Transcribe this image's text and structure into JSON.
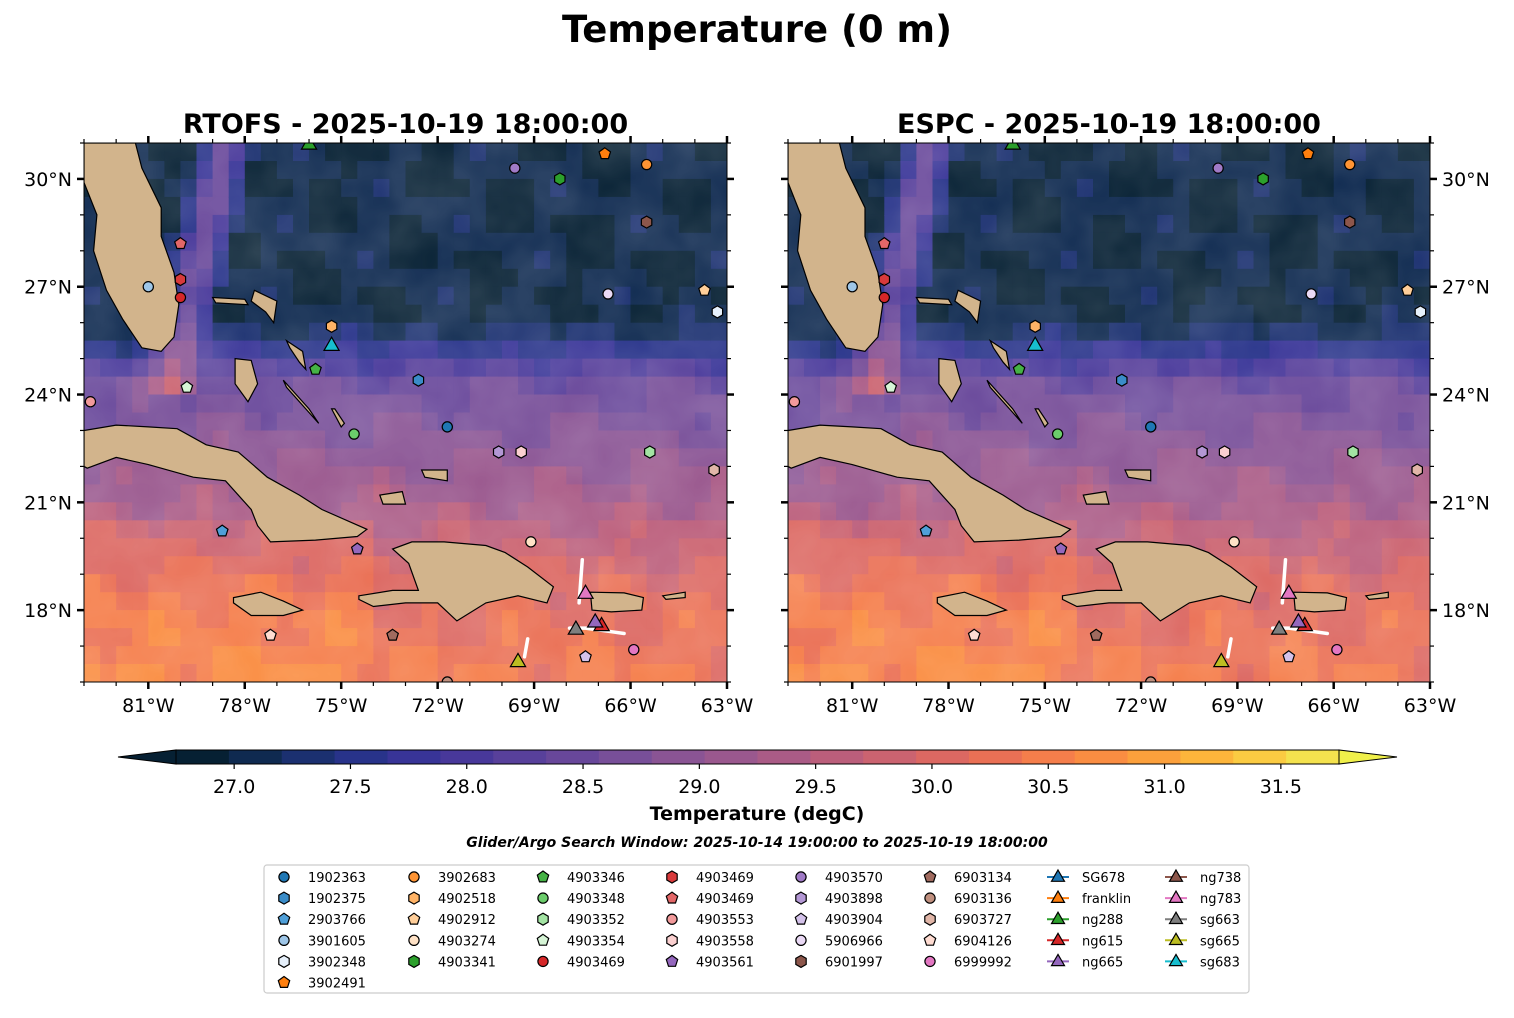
{
  "suptitle": "Temperature (0 m)",
  "search_window": "Glider/Argo Search Window: 2025-10-14 19:00:00 to 2025-10-19 18:00:00",
  "chart_data": [
    {
      "type": "heatmap",
      "title": "RTOFS - 2025-10-19 18:00:00",
      "lon_range": [
        -83,
        -63
      ],
      "lat_range": [
        16,
        31
      ],
      "x_ticks": [
        "81°W",
        "78°W",
        "75°W",
        "72°W",
        "69°W",
        "66°W",
        "63°W"
      ],
      "y_ticks": [
        "30°N",
        "27°N",
        "24°N",
        "21°N",
        "18°N"
      ],
      "field_summary": "Sea surface temperature: ~27 degC north of 25°N, ~28.5 degC around Bahamas, 29.5–30.5 degC in Caribbean"
    },
    {
      "type": "heatmap",
      "title": "ESPC - 2025-10-19 18:00:00",
      "lon_range": [
        -83,
        -63
      ],
      "lat_range": [
        16,
        31
      ],
      "x_ticks": [
        "81°W",
        "78°W",
        "75°W",
        "72°W",
        "69°W",
        "66°W",
        "63°W"
      ],
      "y_ticks": [
        "30°N",
        "27°N",
        "24°N",
        "21°N",
        "18°N"
      ],
      "field_summary": "Sea surface temperature: ~27 degC north of 25°N, ~28.5 degC around Bahamas, 29.5–30.5 degC in Caribbean"
    }
  ],
  "colorbar": {
    "label": "Temperature (degC)",
    "min": 26.75,
    "max": 31.75,
    "ticks": [
      "27.0",
      "27.5",
      "28.0",
      "28.5",
      "29.0",
      "29.5",
      "30.0",
      "30.5",
      "31.0",
      "31.5"
    ],
    "tick_values": [
      27.0,
      27.5,
      28.0,
      28.5,
      29.0,
      29.5,
      30.0,
      30.5,
      31.0,
      31.5
    ],
    "colors": [
      "#062033",
      "#0f2a50",
      "#1b3070",
      "#28338a",
      "#383497",
      "#48389a",
      "#58409b",
      "#68479a",
      "#784f99",
      "#8a5494",
      "#9a588e",
      "#aa5b86",
      "#bb5e7b",
      "#cb6370",
      "#dc6862",
      "#ea7055",
      "#f57e4b",
      "#fa8d42",
      "#fca03c",
      "#fdb53b",
      "#fbcb42",
      "#f4e24e"
    ]
  },
  "observations": [
    {
      "name": "1902363",
      "marker": "circle",
      "color": "#1f77b4",
      "lon": -71.7,
      "lat": 23.1
    },
    {
      "name": "1902375",
      "marker": "hexagon",
      "color": "#3a8cc8",
      "lon": -72.6,
      "lat": 24.4
    },
    {
      "name": "2903766",
      "marker": "pentagon",
      "color": "#4f9fd8",
      "lon": -78.7,
      "lat": 20.2
    },
    {
      "name": "3901605",
      "marker": "circle",
      "color": "#9ec6e8",
      "lon": -81.0,
      "lat": 27.0
    },
    {
      "name": "3902348",
      "marker": "hexagon",
      "color": "#e6f0fb",
      "lon": -63.3,
      "lat": 26.3
    },
    {
      "name": "3902491",
      "marker": "pentagon",
      "color": "#ff7f0e",
      "lon": -66.8,
      "lat": 30.7
    },
    {
      "name": "3902683",
      "marker": "circle",
      "color": "#ff9433",
      "lon": -65.5,
      "lat": 30.4
    },
    {
      "name": "4902518",
      "marker": "hexagon",
      "color": "#ffb366",
      "lon": -75.3,
      "lat": 25.9
    },
    {
      "name": "4902912",
      "marker": "pentagon",
      "color": "#ffce99",
      "lon": -63.7,
      "lat": 26.9
    },
    {
      "name": "4903274",
      "marker": "circle",
      "color": "#ffe2c6",
      "lon": -69.1,
      "lat": 19.9
    },
    {
      "name": "4903341",
      "marker": "hexagon",
      "color": "#2ca02c",
      "lon": -68.2,
      "lat": 30.0
    },
    {
      "name": "4903346",
      "marker": "pentagon",
      "color": "#45b245",
      "lon": -75.8,
      "lat": 24.7
    },
    {
      "name": "4903348",
      "marker": "circle",
      "color": "#6bcc6b",
      "lon": -74.6,
      "lat": 22.9
    },
    {
      "name": "4903352",
      "marker": "hexagon",
      "color": "#a3e3a3",
      "lon": -65.4,
      "lat": 22.4
    },
    {
      "name": "4903354",
      "marker": "pentagon",
      "color": "#d6f5d6",
      "lon": -79.8,
      "lat": 24.2
    },
    {
      "name": "4903469",
      "marker": "circle",
      "color": "#d62728",
      "lon": -80.0,
      "lat": 26.7
    },
    {
      "name": "4903469",
      "marker": "hexagon",
      "color": "#d83a3b",
      "lon": -80.0,
      "lat": 27.2
    },
    {
      "name": "4903469",
      "marker": "pentagon",
      "color": "#e36768",
      "lon": -80.0,
      "lat": 28.2
    },
    {
      "name": "4903553",
      "marker": "circle",
      "color": "#f29a9b",
      "lon": -82.8,
      "lat": 23.8
    },
    {
      "name": "4903558",
      "marker": "hexagon",
      "color": "#fbd0d0",
      "lon": -69.4,
      "lat": 22.4
    },
    {
      "name": "4903561",
      "marker": "pentagon",
      "color": "#9467bd",
      "lon": -74.5,
      "lat": 19.7
    },
    {
      "name": "4903570",
      "marker": "circle",
      "color": "#a07ac6",
      "lon": -69.6,
      "lat": 30.3
    },
    {
      "name": "4903898",
      "marker": "hexagon",
      "color": "#b397d4",
      "lon": -70.1,
      "lat": 22.4
    },
    {
      "name": "4903904",
      "marker": "pentagon",
      "color": "#d4c2ea",
      "lon": -67.4,
      "lat": 16.7
    },
    {
      "name": "5906966",
      "marker": "circle",
      "color": "#ead9f5",
      "lon": -66.7,
      "lat": 26.8
    },
    {
      "name": "6901997",
      "marker": "hexagon",
      "color": "#8c564b",
      "lon": -65.5,
      "lat": 28.8
    },
    {
      "name": "6903134",
      "marker": "pentagon",
      "color": "#a06b5f",
      "lon": -73.4,
      "lat": 17.3
    },
    {
      "name": "6903136",
      "marker": "circle",
      "color": "#c0907f",
      "lon": -71.7,
      "lat": 16.0
    },
    {
      "name": "6903727",
      "marker": "hexagon",
      "color": "#e1b6a8",
      "lon": -63.4,
      "lat": 21.9
    },
    {
      "name": "6904126",
      "marker": "pentagon",
      "color": "#ffdcd2",
      "lon": -77.2,
      "lat": 17.3
    },
    {
      "name": "6999992",
      "marker": "circle",
      "color": "#e377c2",
      "lon": -65.9,
      "lat": 16.9
    },
    {
      "name": "SG678",
      "marker": "triangle",
      "color": "#1f77b4",
      "lon": -999,
      "lat": -999
    },
    {
      "name": "franklin",
      "marker": "triangle",
      "color": "#ff7f0e",
      "lon": -999,
      "lat": -999
    },
    {
      "name": "ng288",
      "marker": "triangle",
      "color": "#2ca02c",
      "lon": -76.0,
      "lat": 31.0
    },
    {
      "name": "ng615",
      "marker": "triangle",
      "color": "#d62728",
      "lon": -66.9,
      "lat": 17.6
    },
    {
      "name": "ng665",
      "marker": "triangle",
      "color": "#9467bd",
      "lon": -67.1,
      "lat": 17.7
    },
    {
      "name": "ng738",
      "marker": "triangle",
      "color": "#8c564b",
      "lon": -999,
      "lat": -999
    },
    {
      "name": "ng783",
      "marker": "triangle",
      "color": "#e377c2",
      "lon": -67.4,
      "lat": 18.5
    },
    {
      "name": "sg663",
      "marker": "triangle",
      "color": "#7f7f7f",
      "lon": -67.7,
      "lat": 17.5
    },
    {
      "name": "sg665",
      "marker": "triangle",
      "color": "#bcbd22",
      "lon": -69.5,
      "lat": 16.6
    },
    {
      "name": "sg683",
      "marker": "triangle",
      "color": "#17becf",
      "lon": -75.3,
      "lat": 25.4
    }
  ],
  "legend_items": [
    {
      "label": "1902363",
      "marker": "circle",
      "color": "#1f77b4"
    },
    {
      "label": "1902375",
      "marker": "hexagon",
      "color": "#3a8cc8"
    },
    {
      "label": "2903766",
      "marker": "pentagon",
      "color": "#4f9fd8"
    },
    {
      "label": "3901605",
      "marker": "circle",
      "color": "#9ec6e8"
    },
    {
      "label": "3902348",
      "marker": "hexagon",
      "color": "#e6f0fb"
    },
    {
      "label": "3902491",
      "marker": "pentagon",
      "color": "#ff7f0e"
    },
    {
      "label": "3902683",
      "marker": "circle",
      "color": "#ff9433"
    },
    {
      "label": "4902518",
      "marker": "hexagon",
      "color": "#ffb366"
    },
    {
      "label": "4902912",
      "marker": "pentagon",
      "color": "#ffce99"
    },
    {
      "label": "4903274",
      "marker": "circle",
      "color": "#ffe2c6"
    },
    {
      "label": "4903341",
      "marker": "hexagon",
      "color": "#2ca02c"
    },
    {
      "label": "4903346",
      "marker": "pentagon",
      "color": "#45b245"
    },
    {
      "label": "4903348",
      "marker": "circle",
      "color": "#6bcc6b"
    },
    {
      "label": "4903352",
      "marker": "hexagon",
      "color": "#a3e3a3"
    },
    {
      "label": "4903354",
      "marker": "pentagon",
      "color": "#d6f5d6"
    },
    {
      "label": "4903469",
      "marker": "circle",
      "color": "#d62728"
    },
    {
      "label": "4903469",
      "marker": "hexagon",
      "color": "#d83a3b"
    },
    {
      "label": "4903469",
      "marker": "pentagon",
      "color": "#e36768"
    },
    {
      "label": "4903553",
      "marker": "circle",
      "color": "#f29a9b"
    },
    {
      "label": "4903558",
      "marker": "hexagon",
      "color": "#fbd0d0"
    },
    {
      "label": "4903561",
      "marker": "pentagon",
      "color": "#9467bd"
    },
    {
      "label": "4903570",
      "marker": "circle",
      "color": "#a07ac6"
    },
    {
      "label": "4903898",
      "marker": "hexagon",
      "color": "#b397d4"
    },
    {
      "label": "4903904",
      "marker": "pentagon",
      "color": "#d4c2ea"
    },
    {
      "label": "5906966",
      "marker": "circle",
      "color": "#ead9f5"
    },
    {
      "label": "6901997",
      "marker": "hexagon",
      "color": "#8c564b"
    },
    {
      "label": "6903134",
      "marker": "pentagon",
      "color": "#a06b5f"
    },
    {
      "label": "6903136",
      "marker": "circle",
      "color": "#c0907f"
    },
    {
      "label": "6903727",
      "marker": "hexagon",
      "color": "#e1b6a8"
    },
    {
      "label": "6904126",
      "marker": "pentagon",
      "color": "#ffdcd2"
    },
    {
      "label": "6999992",
      "marker": "circle",
      "color": "#e377c2"
    },
    {
      "label": "SG678",
      "marker": "triangle",
      "color": "#1f77b4"
    },
    {
      "label": "franklin",
      "marker": "triangle",
      "color": "#ff7f0e"
    },
    {
      "label": "ng288",
      "marker": "triangle",
      "color": "#2ca02c"
    },
    {
      "label": "ng615",
      "marker": "triangle",
      "color": "#d62728"
    },
    {
      "label": "ng665",
      "marker": "triangle",
      "color": "#9467bd"
    },
    {
      "label": "ng738",
      "marker": "triangle",
      "color": "#8c564b"
    },
    {
      "label": "ng783",
      "marker": "triangle",
      "color": "#e377c2"
    },
    {
      "label": "sg663",
      "marker": "triangle",
      "color": "#7f7f7f"
    },
    {
      "label": "sg665",
      "marker": "triangle",
      "color": "#bcbd22"
    },
    {
      "label": "sg683",
      "marker": "triangle",
      "color": "#17becf"
    }
  ],
  "colors": {
    "land": "#d2b48c",
    "coast": "#000000",
    "track": "#ffffff"
  }
}
